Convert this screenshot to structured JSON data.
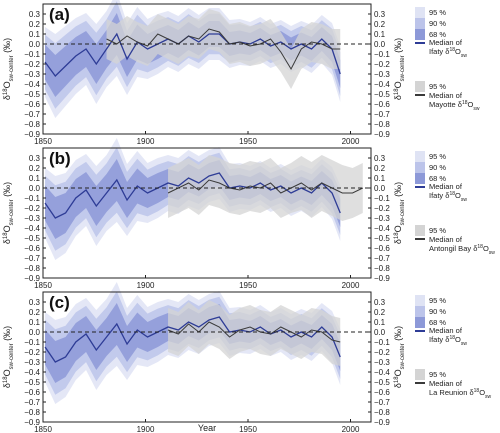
{
  "figure": {
    "xlabel": "Year"
  },
  "colors": {
    "blue_median": "#2e3c96",
    "blue_95": "#dfe3f4",
    "blue_90": "#bcc4ea",
    "blue_68": "#8d99d8",
    "gray_median": "#3a3a3a",
    "gray_95": "#d4d4d4",
    "zero_line": "#222222"
  },
  "chart_data": [
    {
      "type": "line",
      "panel_label": "(a)",
      "ylabel_main": "δ",
      "ylabel_sup": "18",
      "ylabel_o": "O",
      "ylabel_sub": "sw-center",
      "ylabel_unit": "(‰)",
      "xlim": [
        1850,
        2010
      ],
      "ylim": [
        -0.9,
        0.4
      ],
      "xticks": [
        "1850",
        "1900",
        "1950",
        "2000"
      ],
      "yticks": [
        "0.3",
        "0.2",
        "0.1",
        "0.0",
        "−0.1",
        "−0.2",
        "−0.3",
        "−0.4",
        "−0.5",
        "−0.6",
        "−0.7",
        "−0.8",
        "−0.9"
      ],
      "ytick_values": [
        0.3,
        0.2,
        0.1,
        0.0,
        -0.1,
        -0.2,
        -0.3,
        -0.4,
        -0.5,
        -0.6,
        -0.7,
        -0.8,
        -0.9
      ],
      "legend": {
        "blue_levels": [
          "95 %",
          "90 %",
          "68 %"
        ],
        "blue_median": "Median of",
        "blue_site": "Ifaty δ",
        "gray_level": "95 %",
        "gray_median": "Median of",
        "gray_site": "Mayotte δ"
      },
      "series": [
        {
          "name": "Ifaty",
          "x": [
            1851,
            1856,
            1861,
            1866,
            1871,
            1876,
            1881,
            1886,
            1891,
            1896,
            1901,
            1906,
            1911,
            1916,
            1921,
            1926,
            1931,
            1936,
            1941,
            1946,
            1951,
            1956,
            1961,
            1966,
            1971,
            1976,
            1981,
            1986,
            1991,
            1995
          ],
          "y": [
            -0.18,
            -0.32,
            -0.22,
            -0.12,
            -0.05,
            -0.2,
            -0.05,
            0.1,
            -0.15,
            0.02,
            -0.05,
            0.0,
            0.05,
            0.0,
            0.08,
            0.02,
            0.1,
            0.1,
            0.0,
            0.02,
            0.0,
            0.05,
            -0.02,
            0.02,
            -0.05,
            0.0,
            -0.05,
            0.05,
            -0.05,
            -0.3
          ],
          "spread": [
            0.35,
            0.42,
            0.4,
            0.38,
            0.36,
            0.4,
            0.38,
            0.42,
            0.36,
            0.35,
            0.3,
            0.3,
            0.28,
            0.28,
            0.28,
            0.27,
            0.26,
            0.26,
            0.24,
            0.23,
            0.22,
            0.22,
            0.22,
            0.22,
            0.23,
            0.23,
            0.24,
            0.24,
            0.26,
            0.28
          ]
        },
        {
          "name": "Mayotte",
          "x": [
            1881,
            1886,
            1891,
            1896,
            1901,
            1906,
            1911,
            1916,
            1921,
            1926,
            1931,
            1936,
            1941,
            1946,
            1951,
            1956,
            1961,
            1966,
            1971,
            1976,
            1981,
            1986,
            1991,
            1995
          ],
          "y": [
            0.05,
            0.0,
            0.08,
            0.02,
            -0.02,
            0.1,
            0.05,
            0.0,
            0.08,
            0.05,
            0.15,
            0.12,
            0.0,
            0.02,
            -0.02,
            0.0,
            0.05,
            -0.08,
            -0.25,
            -0.05,
            0.02,
            0.0,
            -0.05,
            -0.05
          ],
          "spread": [
            0.2,
            0.2,
            0.2,
            0.2,
            0.2,
            0.2,
            0.2,
            0.2,
            0.2,
            0.2,
            0.2,
            0.2,
            0.2,
            0.2,
            0.2,
            0.2,
            0.2,
            0.2,
            0.2,
            0.2,
            0.2,
            0.2,
            0.2,
            0.2
          ]
        }
      ]
    },
    {
      "type": "line",
      "panel_label": "(b)",
      "ylabel_main": "δ",
      "ylabel_sup": "18",
      "ylabel_o": "O",
      "ylabel_sub": "sw-center",
      "ylabel_unit": "(‰)",
      "xlim": [
        1850,
        2010
      ],
      "ylim": [
        -0.9,
        0.4
      ],
      "xticks": [
        "1850",
        "1900",
        "1950",
        "2000"
      ],
      "yticks": [
        "0.3",
        "0.2",
        "0.1",
        "0.0",
        "−0.1",
        "−0.2",
        "−0.3",
        "−0.4",
        "−0.5",
        "−0.6",
        "−0.7",
        "−0.8",
        "−0.9"
      ],
      "ytick_values": [
        0.3,
        0.2,
        0.1,
        0.0,
        -0.1,
        -0.2,
        -0.3,
        -0.4,
        -0.5,
        -0.6,
        -0.7,
        -0.8,
        -0.9
      ],
      "legend": {
        "blue_levels": [
          "95 %",
          "90 %",
          "68 %"
        ],
        "blue_median": "Median of",
        "blue_site": "Ifaty δ",
        "gray_level": "95 %",
        "gray_median": "Median of",
        "gray_site": "Antongil Bay δ"
      },
      "series": [
        {
          "name": "Ifaty",
          "x": [
            1851,
            1856,
            1861,
            1866,
            1871,
            1876,
            1881,
            1886,
            1891,
            1896,
            1901,
            1906,
            1911,
            1916,
            1921,
            1926,
            1931,
            1936,
            1941,
            1946,
            1951,
            1956,
            1961,
            1966,
            1971,
            1976,
            1981,
            1986,
            1991,
            1995
          ],
          "y": [
            -0.15,
            -0.3,
            -0.25,
            -0.1,
            -0.02,
            -0.18,
            -0.05,
            0.08,
            -0.12,
            0.02,
            -0.05,
            0.0,
            0.05,
            0.02,
            0.1,
            0.05,
            0.12,
            0.15,
            0.0,
            0.02,
            0.0,
            0.05,
            -0.02,
            0.02,
            -0.05,
            0.0,
            -0.05,
            0.05,
            -0.05,
            -0.25
          ],
          "spread": [
            0.35,
            0.42,
            0.4,
            0.38,
            0.36,
            0.4,
            0.38,
            0.42,
            0.36,
            0.35,
            0.3,
            0.3,
            0.28,
            0.28,
            0.28,
            0.27,
            0.26,
            0.26,
            0.24,
            0.23,
            0.22,
            0.22,
            0.22,
            0.22,
            0.23,
            0.23,
            0.24,
            0.24,
            0.26,
            0.28
          ]
        },
        {
          "name": "Antongil Bay",
          "x": [
            1911,
            1916,
            1921,
            1926,
            1931,
            1936,
            1941,
            1946,
            1951,
            1956,
            1961,
            1966,
            1971,
            1976,
            1981,
            1986,
            1991,
            1996,
            2001,
            2006
          ],
          "y": [
            -0.05,
            0.0,
            0.05,
            -0.02,
            0.08,
            0.05,
            0.0,
            -0.02,
            0.02,
            0.0,
            0.05,
            -0.05,
            0.0,
            0.05,
            -0.02,
            0.05,
            0.0,
            -0.05,
            -0.05,
            0.0
          ],
          "spread": [
            0.25,
            0.25,
            0.25,
            0.25,
            0.25,
            0.25,
            0.25,
            0.25,
            0.25,
            0.25,
            0.25,
            0.25,
            0.25,
            0.27,
            0.28,
            0.28,
            0.28,
            0.28,
            0.25,
            0.25
          ]
        }
      ]
    },
    {
      "type": "line",
      "panel_label": "(c)",
      "ylabel_main": "δ",
      "ylabel_sup": "18",
      "ylabel_o": "O",
      "ylabel_sub": "sw-center",
      "ylabel_unit": "(‰)",
      "xlim": [
        1850,
        2010
      ],
      "ylim": [
        -0.9,
        0.4
      ],
      "xticks": [
        "1850",
        "1900",
        "1950",
        "2000"
      ],
      "yticks": [
        "0.3",
        "0.2",
        "0.1",
        "0.0",
        "−0.1",
        "−0.2",
        "−0.3",
        "−0.4",
        "−0.5",
        "−0.6",
        "−0.7",
        "−0.8",
        "−0.9"
      ],
      "ytick_values": [
        0.3,
        0.2,
        0.1,
        0.0,
        -0.1,
        -0.2,
        -0.3,
        -0.4,
        -0.5,
        -0.6,
        -0.7,
        -0.8,
        -0.9
      ],
      "legend": {
        "blue_levels": [
          "95 %",
          "90 %",
          "68 %"
        ],
        "blue_median": "Median of",
        "blue_site": "Ifaty δ",
        "gray_level": "95 %",
        "gray_median": "Median of",
        "gray_site": "La Reunion δ"
      },
      "series": [
        {
          "name": "Ifaty",
          "x": [
            1851,
            1856,
            1861,
            1866,
            1871,
            1876,
            1881,
            1886,
            1891,
            1896,
            1901,
            1906,
            1911,
            1916,
            1921,
            1926,
            1931,
            1936,
            1941,
            1946,
            1951,
            1956,
            1961,
            1966,
            1971,
            1976,
            1981,
            1986,
            1991,
            1995
          ],
          "y": [
            -0.15,
            -0.3,
            -0.25,
            -0.1,
            -0.02,
            -0.18,
            -0.05,
            0.08,
            -0.12,
            0.02,
            -0.05,
            0.0,
            0.05,
            0.02,
            0.1,
            0.05,
            0.12,
            0.15,
            0.0,
            0.02,
            0.0,
            0.05,
            -0.02,
            0.02,
            -0.05,
            0.0,
            -0.05,
            0.05,
            -0.05,
            -0.25
          ],
          "spread": [
            0.35,
            0.42,
            0.4,
            0.38,
            0.36,
            0.4,
            0.38,
            0.42,
            0.36,
            0.35,
            0.3,
            0.3,
            0.28,
            0.28,
            0.28,
            0.27,
            0.26,
            0.26,
            0.24,
            0.23,
            0.22,
            0.22,
            0.22,
            0.22,
            0.23,
            0.23,
            0.24,
            0.24,
            0.26,
            0.28
          ]
        },
        {
          "name": "La Reunion",
          "x": [
            1911,
            1916,
            1921,
            1926,
            1931,
            1936,
            1941,
            1946,
            1951,
            1956,
            1961,
            1966,
            1971,
            1976,
            1981,
            1986,
            1991,
            1995
          ],
          "y": [
            0.02,
            -0.02,
            0.08,
            0.0,
            0.1,
            0.05,
            -0.05,
            0.02,
            0.05,
            0.0,
            -0.02,
            0.05,
            0.0,
            -0.05,
            0.02,
            0.0,
            -0.08,
            -0.1
          ],
          "spread": [
            0.22,
            0.22,
            0.22,
            0.22,
            0.22,
            0.22,
            0.22,
            0.22,
            0.22,
            0.22,
            0.22,
            0.22,
            0.22,
            0.22,
            0.22,
            0.22,
            0.24,
            0.24
          ]
        }
      ]
    }
  ]
}
